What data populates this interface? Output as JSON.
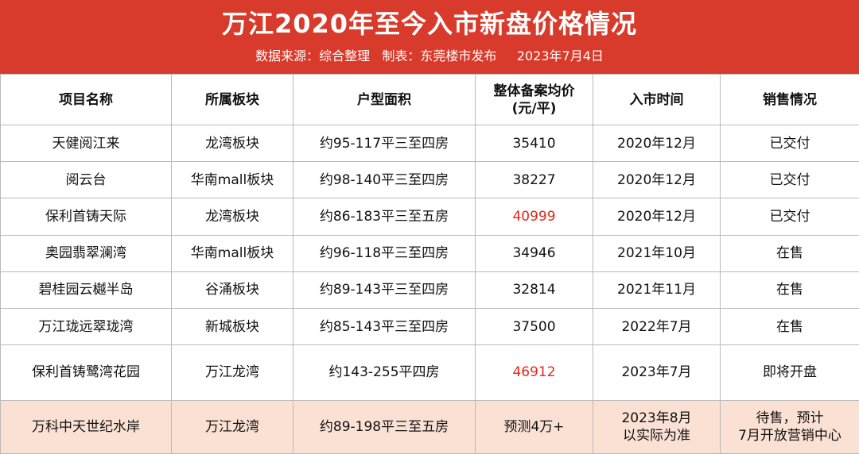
{
  "header": {
    "title": "万江2020年至今入市新盘价格情况",
    "subtitle": "数据来源：综合整理   制表：东莞楼市发布     2023年7月4日"
  },
  "colors": {
    "header_bg": "#d83a2b",
    "highlight_price": "#e0291d",
    "last_row_bg": "#fbe1d4"
  },
  "table": {
    "columns": [
      "项目名称",
      "所属板块",
      "户型面积",
      "整体备案均价",
      "(元/平)",
      "入市时间",
      "销售情况"
    ],
    "rows": [
      {
        "name": "天健阅江来",
        "area": "龙湾板块",
        "unit": "约95-117平三至四房",
        "price": "35410",
        "date": "2020年12月",
        "status": "已交付"
      },
      {
        "name": "阅云台",
        "area": "华南mall板块",
        "unit": "约98-140平三至四房",
        "price": "38227",
        "date": "2020年12月",
        "status": "已交付"
      },
      {
        "name": "保利首铸天际",
        "area": "龙湾板块",
        "unit": "约86-183平三至五房",
        "price": "40999",
        "date": "2020年12月",
        "status": "已交付"
      },
      {
        "name": "奥园翡翠澜湾",
        "area": "华南mall板块",
        "unit": "约96-118平三至四房",
        "price": "34946",
        "date": "2021年10月",
        "status": "在售"
      },
      {
        "name": "碧桂园云樾半岛",
        "area": "谷涌板块",
        "unit": "约89-143平三至四房",
        "price": "32814",
        "date": "2021年11月",
        "status": "在售"
      },
      {
        "name": "万江珑远翠珑湾",
        "area": "新城板块",
        "unit": "约85-143平三至四房",
        "price": "37500",
        "date": "2022年7月",
        "status": "在售"
      },
      {
        "name": "保利首铸鹭湾花园",
        "area": "万江龙湾",
        "unit": "约143-255平四房",
        "price": "46912",
        "date": "2023年7月",
        "status": "即将开盘"
      }
    ],
    "last_row": {
      "name": "万科中天世纪水岸",
      "area": "万江龙湾",
      "unit": "约89-198平三至五房",
      "price": "预测4万+",
      "date_line1": "2023年8月",
      "date_line2": "以实际为准",
      "status_line1": "待售，预计",
      "status_line2": "7月开放营销中心"
    }
  }
}
